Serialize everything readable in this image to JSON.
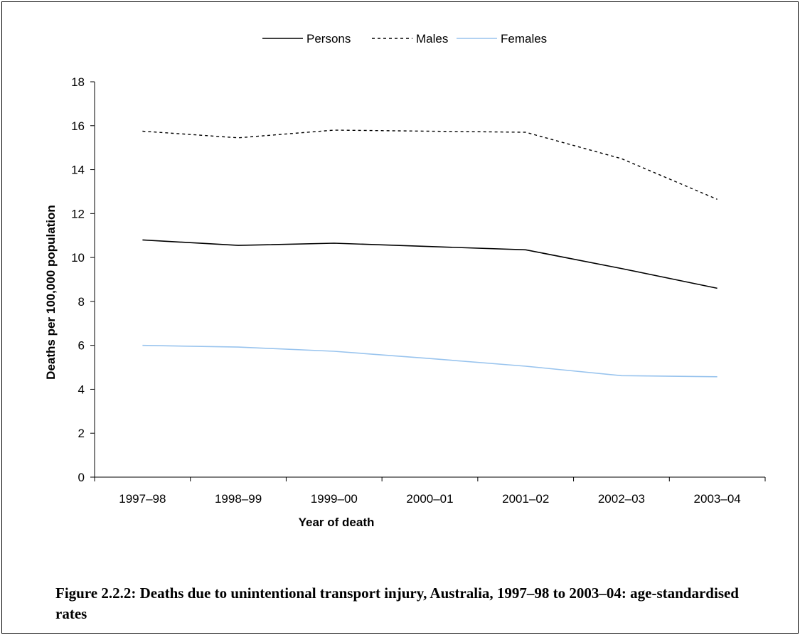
{
  "chart_data": {
    "type": "line",
    "categories": [
      "1997–98",
      "1998–99",
      "1999–00",
      "2000–01",
      "2001–02",
      "2002–03",
      "2003–04"
    ],
    "series": [
      {
        "name": "Persons",
        "values": [
          10.8,
          10.55,
          10.65,
          10.5,
          10.35,
          9.5,
          8.6
        ],
        "color": "#000000",
        "dash": "solid"
      },
      {
        "name": "Males",
        "values": [
          15.75,
          15.45,
          15.8,
          15.75,
          15.7,
          14.5,
          12.65
        ],
        "color": "#000000",
        "dash": "dotted"
      },
      {
        "name": "Females",
        "values": [
          6.0,
          5.92,
          5.73,
          5.4,
          5.05,
          4.62,
          4.57
        ],
        "color": "#99c4ee",
        "dash": "solid"
      }
    ],
    "xlabel": "Year of death",
    "ylabel": "Deaths per 100,000 population",
    "ylim": [
      0,
      18
    ],
    "yticks": [
      "0",
      "2",
      "4",
      "6",
      "8",
      "10",
      "12",
      "14",
      "16",
      "18"
    ],
    "grid": false,
    "legend_position": "top-center"
  },
  "caption": "Figure 2.2.2: Deaths due to unintentional transport injury, Australia, 1997–98 to 2003–04: age-standardised rates"
}
